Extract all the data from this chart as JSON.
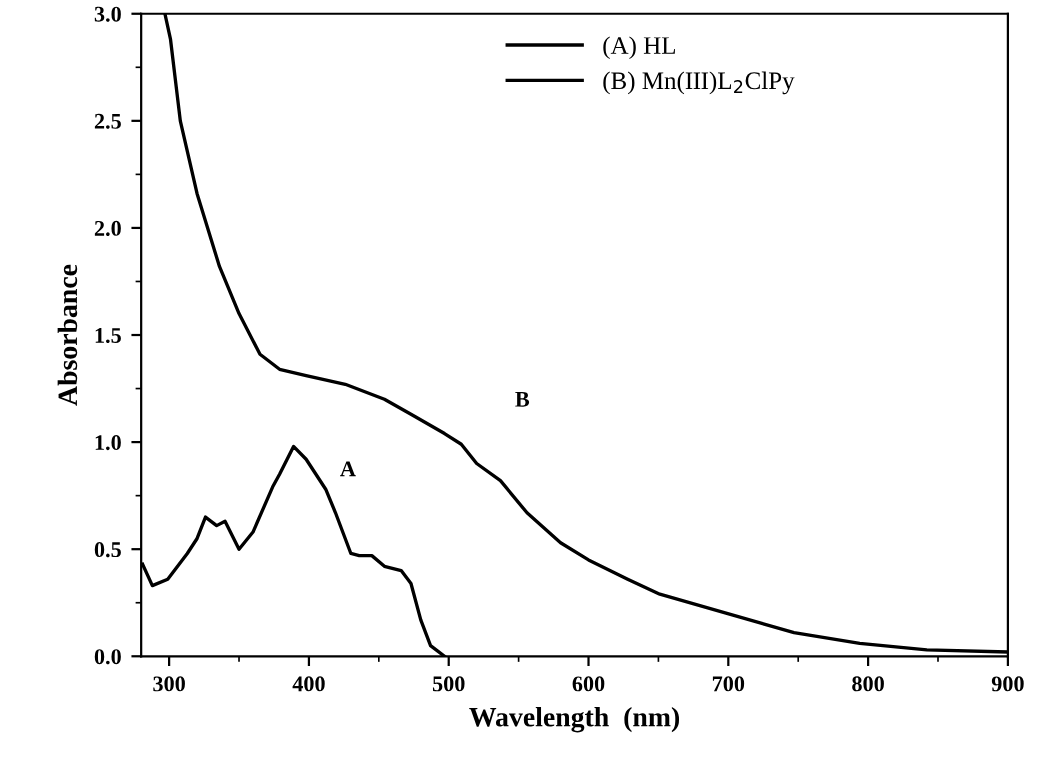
{
  "chart_data": {
    "type": "line",
    "xlabel": "Wavelength  (nm)",
    "ylabel": "Absorbance",
    "xlim": [
      280,
      900
    ],
    "xticks": [
      300,
      400,
      500,
      600,
      700,
      800,
      900
    ],
    "ylim": [
      0,
      3.0
    ],
    "yticks": [
      {
        "value": 0,
        "label": "0.0"
      },
      {
        "value": 0.5,
        "label": "0.5"
      },
      {
        "value": 1.0,
        "label": "1.0"
      },
      {
        "value": 1.5,
        "label": "1.5"
      },
      {
        "value": 2.0,
        "label": "2.0"
      },
      {
        "value": 2.5,
        "label": "2.5"
      },
      {
        "value": 3.0,
        "label": "3.0"
      }
    ],
    "grid": false,
    "legend": "top right",
    "marker": "none",
    "line_style": "solid",
    "series": [
      {
        "name": "(A) HL",
        "color": "#000000",
        "x": [
          281,
          288,
          299,
          313,
          320,
          326,
          334,
          340,
          350,
          360,
          374,
          379,
          389,
          398,
          412,
          419,
          430,
          436,
          445,
          454,
          466,
          473,
          480,
          487,
          497
        ],
        "values": [
          0.43,
          0.33,
          0.36,
          0.48,
          0.55,
          0.65,
          0.61,
          0.63,
          0.5,
          0.58,
          0.79,
          0.85,
          0.98,
          0.92,
          0.78,
          0.67,
          0.48,
          0.47,
          0.47,
          0.42,
          0.4,
          0.34,
          0.17,
          0.05,
          0.0
        ]
      },
      {
        "name": "(B) Mn(III)L$_{2}$ClPy",
        "color": "#000000",
        "x": [
          297,
          301,
          308,
          320,
          336,
          350,
          365,
          379,
          398,
          426,
          454,
          473,
          497,
          509,
          520,
          537,
          556,
          580,
          600,
          628,
          651,
          699,
          747,
          794,
          842,
          900
        ],
        "values": [
          3.0,
          2.88,
          2.5,
          2.16,
          1.82,
          1.6,
          1.41,
          1.34,
          1.31,
          1.27,
          1.2,
          1.13,
          1.04,
          0.99,
          0.9,
          0.82,
          0.67,
          0.53,
          0.45,
          0.36,
          0.29,
          0.2,
          0.11,
          0.06,
          0.03,
          0.02
        ]
      }
    ],
    "annotations": [
      "A",
      "B"
    ]
  }
}
